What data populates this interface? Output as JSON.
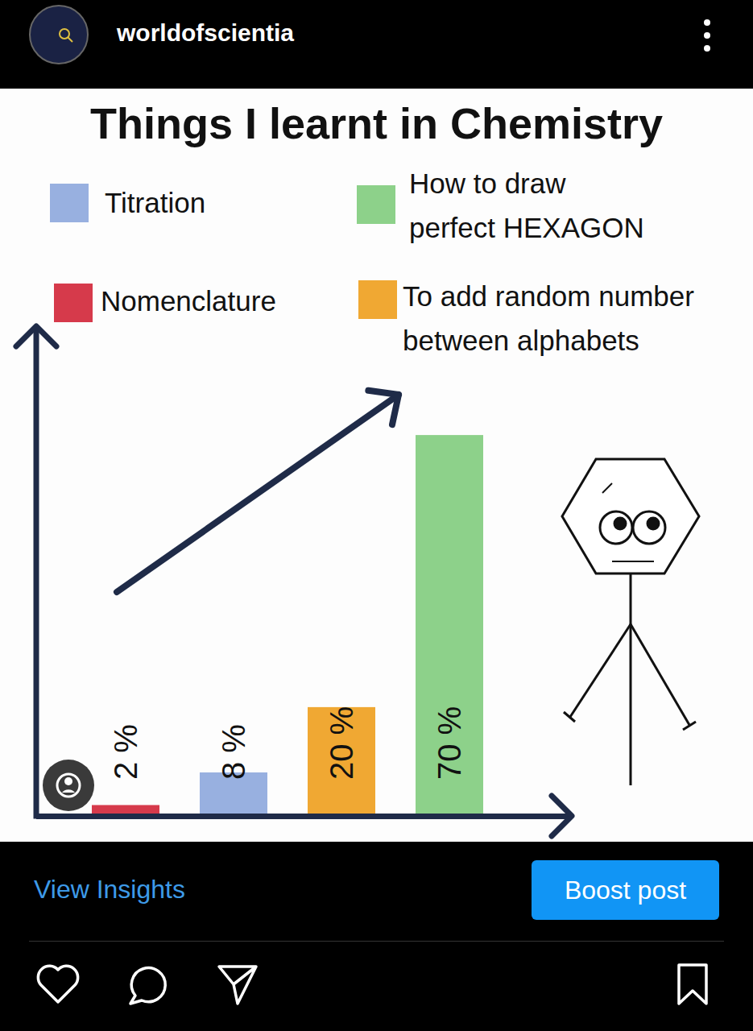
{
  "page": {
    "account": "worldofscientia",
    "insights_link": "View Insights",
    "button": "Boost post"
  },
  "chart_data": {
    "type": "bar",
    "title": "Things I learnt in Chemistry",
    "categories": [
      "Nomenclature",
      "Titration",
      "To add random number between alphabets",
      "How to draw perfect HEXAGON"
    ],
    "values": [
      2,
      8,
      20,
      70
    ],
    "value_labels": [
      "2 %",
      "8 %",
      "20 %",
      "70 %"
    ],
    "colors": [
      "#d63a4b",
      "#98b0e0",
      "#f0a833",
      "#8dd18a"
    ],
    "ylim": [
      0,
      90
    ],
    "tick_labels": false,
    "legend": "top",
    "data_labels": true
  }
}
